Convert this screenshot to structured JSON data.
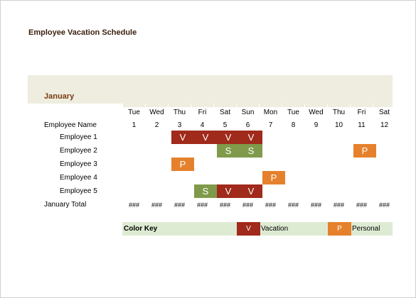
{
  "title": "Employee Vacation Schedule",
  "month": "January",
  "days": [
    {
      "name": "Tue",
      "num": "1"
    },
    {
      "name": "Wed",
      "num": "2"
    },
    {
      "name": "Thu",
      "num": "3"
    },
    {
      "name": "Fri",
      "num": "4"
    },
    {
      "name": "Sat",
      "num": "5"
    },
    {
      "name": "Sun",
      "num": "6"
    },
    {
      "name": "Mon",
      "num": "7"
    },
    {
      "name": "Tue",
      "num": "8"
    },
    {
      "name": "Wed",
      "num": "9"
    },
    {
      "name": "Thu",
      "num": "10"
    },
    {
      "name": "Fri",
      "num": "11"
    },
    {
      "name": "Sat",
      "num": "12"
    }
  ],
  "name_header": "Employee Name",
  "employees": [
    {
      "name": "Employee 1",
      "marks": [
        "",
        "",
        "V",
        "V",
        "V",
        "V",
        "",
        "",
        "",
        "",
        "",
        ""
      ]
    },
    {
      "name": "Employee 2",
      "marks": [
        "",
        "",
        "",
        "",
        "S",
        "S",
        "",
        "",
        "",
        "",
        "P",
        ""
      ]
    },
    {
      "name": "Employee 3",
      "marks": [
        "",
        "",
        "P",
        "",
        "",
        "",
        "",
        "",
        "",
        "",
        "",
        ""
      ]
    },
    {
      "name": "Employee 4",
      "marks": [
        "",
        "",
        "",
        "",
        "",
        "",
        "P",
        "",
        "",
        "",
        "",
        ""
      ]
    },
    {
      "name": "Employee 5",
      "marks": [
        "",
        "",
        "",
        "S",
        "V",
        "V",
        "",
        "",
        "",
        "",
        "",
        ""
      ]
    }
  ],
  "total_label": "January Total",
  "total_values": [
    "###",
    "###",
    "###",
    "###",
    "###",
    "###",
    "###",
    "###",
    "###",
    "###",
    "###",
    "###"
  ],
  "color_key": {
    "title": "Color Key",
    "items": [
      {
        "code": "V",
        "label": "Vacation",
        "color": "#a02a1b"
      },
      {
        "code": "P",
        "label": "Personal",
        "color": "#e5812c"
      }
    ]
  },
  "colors": {
    "V": "#a02a1b",
    "S": "#7f9a4a",
    "P": "#e5812c",
    "band": "#eeede0",
    "key_band": "#deebd3"
  }
}
